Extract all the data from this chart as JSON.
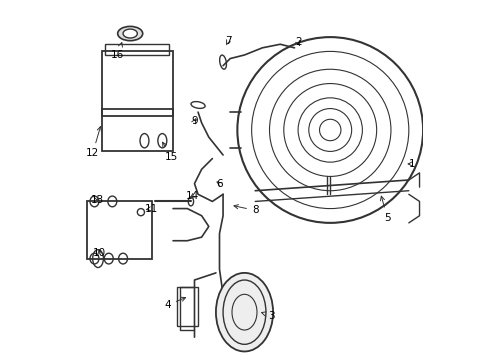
{
  "title": "",
  "background_color": "#ffffff",
  "line_color": "#333333",
  "text_color": "#000000",
  "fig_width": 4.89,
  "fig_height": 3.6,
  "dpi": 100,
  "stroke_width": 1.0
}
